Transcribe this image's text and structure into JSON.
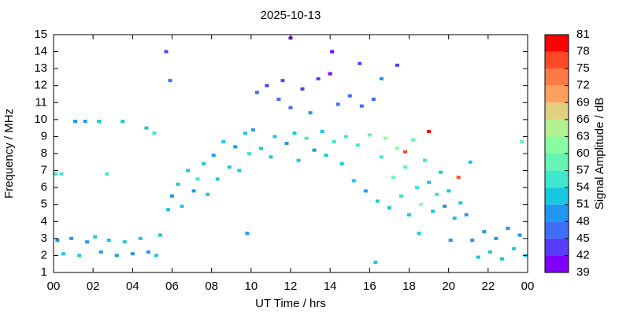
{
  "chart_data": {
    "type": "scatter",
    "title": "2025-10-13",
    "x_label": "UT Time / hrs",
    "y_label": "Frequency / MHz",
    "colorbar_label": "Signal Amplitude / dB",
    "xlim": [
      0,
      24
    ],
    "xticks": [
      {
        "value": 0,
        "label": "00"
      },
      {
        "value": 2,
        "label": "02"
      },
      {
        "value": 4,
        "label": "04"
      },
      {
        "value": 6,
        "label": "06"
      },
      {
        "value": 8,
        "label": "08"
      },
      10,
      12,
      14,
      16,
      18,
      20,
      22,
      {
        "value": 24,
        "label": "00"
      }
    ],
    "ylim": [
      1,
      15
    ],
    "yticks": [
      1,
      2,
      3,
      4,
      5,
      6,
      7,
      8,
      9,
      10,
      11,
      12,
      13,
      14,
      15
    ],
    "clim": [
      39,
      81
    ],
    "cticks": [
      39,
      42,
      45,
      48,
      51,
      54,
      57,
      60,
      63,
      66,
      69,
      72,
      75,
      78,
      81
    ],
    "colors": [
      "#8000ff",
      "#5a3cfe",
      "#3c6ef8",
      "#2196f0",
      "#18c8e0",
      "#3ee8cc",
      "#66f4b4",
      "#88fca0",
      "#b4f090",
      "#e0d080",
      "#ffa060",
      "#ff7a46",
      "#ff4a24",
      "#ff0000"
    ],
    "x": [
      0.2,
      0.5,
      0.9,
      1.3,
      1.7,
      2.1,
      2.4,
      2.8,
      3.2,
      3.6,
      4.0,
      4.4,
      4.8,
      5.2,
      5.4,
      0.1,
      0.4,
      1.1,
      1.6,
      2.3,
      3.5,
      4.7,
      5.1,
      5.7,
      5.9,
      2.7,
      5.8,
      6.0,
      6.3,
      6.5,
      6.8,
      7.1,
      7.3,
      7.6,
      7.8,
      8.1,
      8.3,
      8.6,
      8.9,
      9.2,
      9.4,
      9.7,
      9.9,
      10.1,
      10.3,
      10.5,
      10.8,
      11.0,
      11.2,
      11.4,
      11.6,
      11.8,
      12.0,
      12.2,
      12.4,
      12.6,
      12.8,
      13.0,
      13.2,
      13.4,
      13.6,
      13.8,
      14.0,
      14.2,
      14.4,
      14.6,
      14.8,
      15.0,
      15.2,
      15.4,
      15.6,
      15.8,
      16.0,
      16.2,
      16.4,
      16.6,
      16.8,
      17.0,
      17.2,
      17.4,
      17.6,
      17.8,
      18.0,
      18.2,
      18.4,
      18.6,
      18.8,
      19.0,
      19.2,
      19.4,
      19.6,
      19.8,
      20.0,
      20.3,
      20.6,
      20.9,
      12.0,
      14.1,
      15.5,
      17.4,
      19.0,
      17.8,
      16.6,
      21.2,
      21.5,
      21.8,
      22.1,
      22.4,
      22.7,
      23.0,
      23.3,
      23.6,
      23.9,
      20.1,
      18.5,
      9.8,
      16.3,
      23.7,
      21.1,
      20.5
    ],
    "y": [
      2.9,
      2.1,
      3.0,
      2.0,
      2.8,
      3.1,
      2.2,
      2.9,
      2.0,
      2.8,
      2.1,
      3.0,
      2.2,
      2.0,
      3.2,
      6.8,
      6.8,
      9.9,
      9.9,
      9.9,
      9.9,
      9.5,
      9.2,
      14.0,
      12.3,
      6.8,
      4.7,
      5.5,
      6.2,
      4.9,
      7.0,
      5.8,
      6.5,
      7.4,
      5.6,
      7.9,
      6.5,
      8.7,
      7.2,
      8.4,
      7.0,
      9.2,
      8.0,
      9.4,
      11.6,
      8.3,
      12.0,
      7.8,
      9.0,
      11.2,
      12.3,
      8.6,
      10.7,
      9.2,
      7.6,
      11.8,
      8.9,
      10.4,
      8.2,
      12.4,
      9.3,
      7.9,
      12.7,
      8.7,
      10.9,
      7.4,
      9.0,
      11.4,
      6.4,
      8.5,
      10.8,
      5.8,
      9.1,
      11.2,
      5.2,
      7.8,
      8.9,
      4.8,
      6.6,
      8.3,
      5.5,
      7.2,
      4.4,
      8.8,
      6.0,
      5.0,
      7.6,
      6.3,
      4.6,
      5.6,
      6.9,
      4.9,
      5.8,
      4.2,
      5.1,
      4.4,
      14.8,
      14.0,
      13.3,
      13.2,
      9.3,
      8.1,
      12.4,
      2.9,
      1.9,
      3.4,
      2.2,
      3.0,
      1.8,
      3.6,
      2.4,
      3.2,
      2.0,
      2.9,
      3.3,
      3.3,
      1.6,
      8.7,
      7.5,
      6.6
    ],
    "values": [
      50,
      51,
      49,
      52,
      50,
      51,
      49,
      52,
      50,
      51,
      49,
      52,
      50,
      51,
      53,
      55,
      54,
      50,
      49,
      51,
      52,
      53,
      55,
      42,
      45,
      56,
      51,
      50,
      52,
      53,
      51,
      50,
      54,
      52,
      51,
      50,
      53,
      51,
      52,
      50,
      53,
      51,
      54,
      50,
      45,
      52,
      44,
      51,
      53,
      46,
      42,
      50,
      47,
      52,
      51,
      44,
      54,
      48,
      50,
      42,
      53,
      52,
      41,
      55,
      46,
      51,
      56,
      45,
      52,
      54,
      47,
      50,
      57,
      46,
      51,
      55,
      60,
      52,
      58,
      62,
      54,
      57,
      53,
      59,
      56,
      61,
      55,
      52,
      51,
      54,
      53,
      50,
      52,
      51,
      53,
      50,
      40,
      41,
      42,
      43,
      78,
      76,
      48,
      50,
      51,
      49,
      52,
      50,
      51,
      49,
      52,
      50,
      51,
      50,
      52,
      50,
      53,
      58,
      51,
      75
    ]
  }
}
